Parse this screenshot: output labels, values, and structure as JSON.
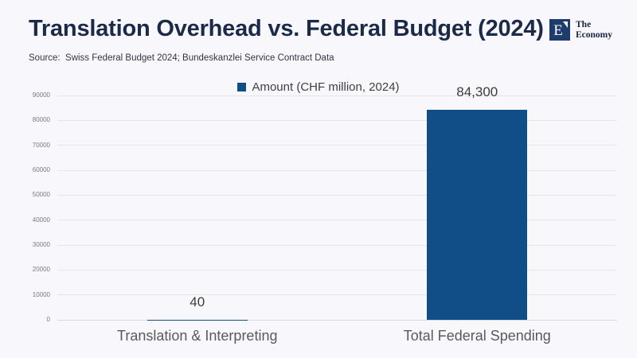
{
  "page": {
    "background_color": "#f8f8fc"
  },
  "header": {
    "title": "Translation Overhead vs. Federal Budget (2024)",
    "source": "Source:  Swiss Federal Budget 2024; Bundeskanzlei Service Contract Data"
  },
  "logo": {
    "letter": "E",
    "name_line1": "The",
    "name_line2": "Economy",
    "square_color": "#1e3c6b"
  },
  "legend": {
    "label": "Amount (CHF million, 2024)",
    "marker_color": "#114e87"
  },
  "chart_data": {
    "type": "bar",
    "title": "Translation Overhead vs. Federal Budget (2024)",
    "categories": [
      "Translation & Interpreting",
      "Total Federal Spending"
    ],
    "values": [
      40,
      84300
    ],
    "value_labels": [
      "40",
      "84,300"
    ],
    "series": [
      {
        "name": "Amount (CHF million, 2024)",
        "values": [
          40,
          84300
        ]
      }
    ],
    "xlabel": "",
    "ylabel": "",
    "ylim": [
      0,
      90000
    ],
    "yticks": [
      0,
      10000,
      20000,
      30000,
      40000,
      50000,
      60000,
      70000,
      80000,
      90000
    ],
    "grid": true,
    "legend_position": "top-center",
    "bar_color": "#114e87"
  }
}
